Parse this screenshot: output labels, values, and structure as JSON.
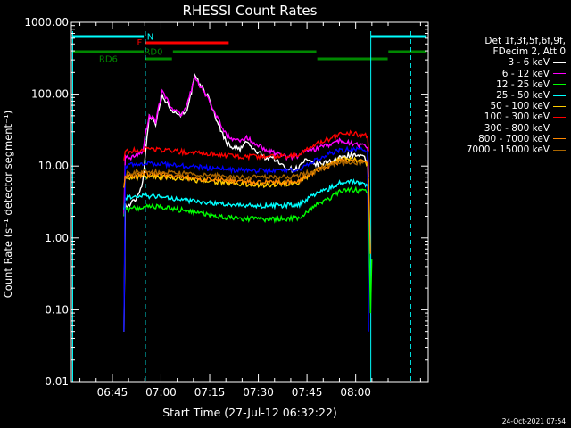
{
  "chart_data": {
    "type": "line",
    "title": "RHESSI Count Rates",
    "xlabel": "Start Time (27-Jul-12 06:32:22)",
    "ylabel": "Count Rate (s⁻¹ detector segment⁻¹)",
    "x_units": "minutes after 06:32:22",
    "xlim": [
      0,
      110
    ],
    "ylim": [
      0.01,
      1000
    ],
    "y_scale": "log",
    "y_ticks": [
      0.01,
      0.1,
      1,
      10,
      100,
      1000
    ],
    "y_tick_labels": [
      "0.01",
      "0.10",
      "1.00",
      "10.00",
      "100.00",
      "1000.00"
    ],
    "x_ticks": [
      12.63,
      27.63,
      42.63,
      57.63,
      72.63,
      87.63
    ],
    "x_tick_labels": [
      "06:45",
      "07:00",
      "07:15",
      "07:30",
      "07:45",
      "08:00"
    ],
    "grid": false,
    "legend_header": [
      "Det 1f,3f,5f,6f,9f,",
      "FDecim 2, Att 0"
    ],
    "series": [
      {
        "name": "3 - 6 keV",
        "color": "#ffffff",
        "x": [
          16.2,
          16.6,
          17,
          18,
          19,
          20,
          22,
          24,
          26,
          28,
          30,
          32,
          34,
          36,
          38,
          40,
          42,
          44,
          46,
          48,
          50,
          52,
          54,
          56,
          58,
          60,
          62,
          64,
          66,
          68,
          70,
          72,
          74,
          76,
          78,
          80,
          82,
          84,
          86,
          88,
          90,
          91.3,
          91.6
        ],
        "y": [
          0.05,
          3,
          2.7,
          2.9,
          3.2,
          3.5,
          6,
          52,
          40,
          95,
          70,
          55,
          52,
          65,
          175,
          130,
          95,
          55,
          32,
          21,
          18,
          17,
          22,
          17,
          15,
          13,
          13.5,
          11,
          9.5,
          9,
          9.5,
          12,
          11,
          10.5,
          11,
          12,
          12.5,
          13.5,
          14.5,
          14,
          13,
          12,
          4
        ]
      },
      {
        "name": "6 - 12 keV",
        "color": "#ff00ff",
        "x": [
          16.2,
          16.6,
          17,
          18,
          19,
          20,
          22,
          24,
          26,
          28,
          30,
          32,
          34,
          36,
          38,
          40,
          42,
          44,
          46,
          48,
          50,
          52,
          54,
          56,
          58,
          60,
          62,
          64,
          66,
          68,
          70,
          72,
          74,
          76,
          78,
          80,
          82,
          84,
          86,
          88,
          90,
          91.3,
          91.6
        ],
        "y": [
          2,
          14,
          13,
          13,
          13.5,
          14,
          16,
          52,
          42,
          110,
          75,
          58,
          52,
          80,
          165,
          125,
          90,
          58,
          38,
          27,
          23,
          22,
          25,
          21,
          19,
          17,
          15.5,
          14.5,
          13.5,
          13.5,
          14,
          16,
          16.5,
          17.5,
          19,
          20.5,
          22,
          22.5,
          21,
          20,
          19,
          18,
          7
        ]
      },
      {
        "name": "12 - 25 keV",
        "color": "#00ff00",
        "x": [
          16.2,
          16.6,
          17,
          20,
          25,
          30,
          35,
          40,
          45,
          50,
          55,
          60,
          65,
          70,
          72,
          75,
          78,
          80,
          82,
          84,
          86,
          88,
          90,
          91.3,
          91.6,
          92.2,
          92.6
        ],
        "y": [
          2,
          2.5,
          2.5,
          2.6,
          2.8,
          2.6,
          2.4,
          2.2,
          2.0,
          1.9,
          1.85,
          1.8,
          1.85,
          1.9,
          2.2,
          2.8,
          3.3,
          3.6,
          4.2,
          4.6,
          4.8,
          4.6,
          4.5,
          4.2,
          2.5,
          0.09,
          0.5
        ]
      },
      {
        "name": "25 - 50 keV",
        "color": "#00ffff",
        "x": [
          16.2,
          16.6,
          17,
          20,
          25,
          30,
          35,
          40,
          45,
          50,
          55,
          60,
          65,
          70,
          72,
          75,
          78,
          80,
          82,
          84,
          86,
          88,
          90,
          91.3,
          91.6
        ],
        "y": [
          2.5,
          3.6,
          3.6,
          3.7,
          3.9,
          3.6,
          3.4,
          3.2,
          3.0,
          2.9,
          2.8,
          2.8,
          2.85,
          2.9,
          3.3,
          4.0,
          4.6,
          5.0,
          5.6,
          6.0,
          6.2,
          6.0,
          5.6,
          5.2,
          3
        ]
      },
      {
        "name": "50 - 100 keV",
        "color": "#ffcc00",
        "x": [
          16.2,
          16.6,
          17,
          20,
          25,
          30,
          35,
          40,
          45,
          50,
          55,
          60,
          65,
          70,
          72,
          75,
          78,
          80,
          82,
          84,
          86,
          88,
          90,
          91.3,
          91.6
        ],
        "y": [
          5,
          6.8,
          6.8,
          7.0,
          7.3,
          6.9,
          6.6,
          6.3,
          6.0,
          5.8,
          5.6,
          5.5,
          5.6,
          5.9,
          6.9,
          8.5,
          10.0,
          11.0,
          12.0,
          12.5,
          12.5,
          12.0,
          11.5,
          11,
          6
        ]
      },
      {
        "name": "100 - 300 keV",
        "color": "#ff0000",
        "x": [
          16.2,
          16.6,
          17,
          20,
          25,
          30,
          35,
          40,
          45,
          50,
          55,
          60,
          65,
          70,
          72,
          75,
          78,
          80,
          82,
          84,
          86,
          88,
          90,
          91.3,
          91.6
        ],
        "y": [
          12,
          16,
          16,
          16.5,
          17.5,
          16.5,
          15.5,
          15.0,
          14.5,
          14.0,
          13.5,
          13.5,
          13.8,
          14.2,
          16.5,
          19.5,
          22.5,
          24.5,
          26.5,
          28.0,
          28.5,
          28.0,
          27.0,
          26,
          16
        ]
      },
      {
        "name": "300 - 800 keV",
        "color": "#0000ff",
        "x": [
          16.2,
          16.6,
          17,
          20,
          25,
          30,
          35,
          40,
          45,
          50,
          55,
          60,
          65,
          70,
          72,
          75,
          78,
          80,
          82,
          84,
          86,
          88,
          90,
          91.3,
          91.6
        ],
        "y": [
          0.05,
          10.2,
          10.2,
          10.5,
          11.0,
          10.5,
          10.0,
          9.6,
          9.2,
          8.9,
          8.7,
          8.6,
          8.8,
          9.1,
          10.3,
          12.0,
          13.8,
          15.0,
          16.0,
          16.8,
          17.2,
          17.0,
          16.5,
          16,
          0.05
        ]
      },
      {
        "name": "800 - 7000 keV",
        "color": "#ff8800",
        "x": [
          16.2,
          16.6,
          17,
          20,
          25,
          30,
          35,
          40,
          45,
          50,
          55,
          60,
          65,
          70,
          72,
          75,
          78,
          80,
          82,
          84,
          86,
          88,
          90,
          91.3,
          91.6,
          92.2
        ],
        "y": [
          5,
          7.2,
          7.2,
          7.4,
          7.8,
          7.4,
          7.0,
          6.7,
          6.4,
          6.2,
          6.0,
          5.9,
          6.0,
          6.2,
          7.0,
          8.2,
          9.6,
          10.6,
          11.4,
          12.0,
          12.2,
          12.0,
          11.6,
          11,
          6,
          0.6
        ]
      },
      {
        "name": "7000 - 15000 keV",
        "color": "#aa6600",
        "x": [
          17,
          20,
          25,
          30,
          35,
          40,
          45,
          50,
          55,
          60,
          65,
          70,
          75,
          80,
          85,
          90
        ],
        "y": [
          8,
          8.2,
          8.4,
          8.1,
          7.8,
          7.5,
          7.3,
          7.1,
          7.0,
          7.0,
          7.1,
          7.4,
          8.5,
          10.5,
          11.5,
          11
        ]
      }
    ],
    "annotations": {
      "vertical_dashed_lines_x": [
        22.8,
        104.6
      ],
      "vertical_solid_lines_x": [
        0.4,
        92.3
      ],
      "flags": [
        {
          "label": "N",
          "color": "#00ffff",
          "segments": [
            [
              0.4,
              22.3
            ],
            [
              92.3,
              109.5
            ]
          ]
        },
        {
          "label": "F",
          "color": "#ff0000",
          "segments": [
            [
              22.6,
              48.5
            ]
          ]
        },
        {
          "label": "RD0",
          "color": "#008800",
          "segments": [
            [
              0.4,
              22.3
            ],
            [
              31.3,
              75.5
            ],
            [
              97.7,
              109.5
            ]
          ]
        },
        {
          "label": "RD6",
          "color": "#008800",
          "segments": [
            [
              22.6,
              31.0
            ],
            [
              75.8,
              97.5
            ]
          ]
        }
      ]
    }
  },
  "timestamp": "24-Oct-2021 07:54"
}
